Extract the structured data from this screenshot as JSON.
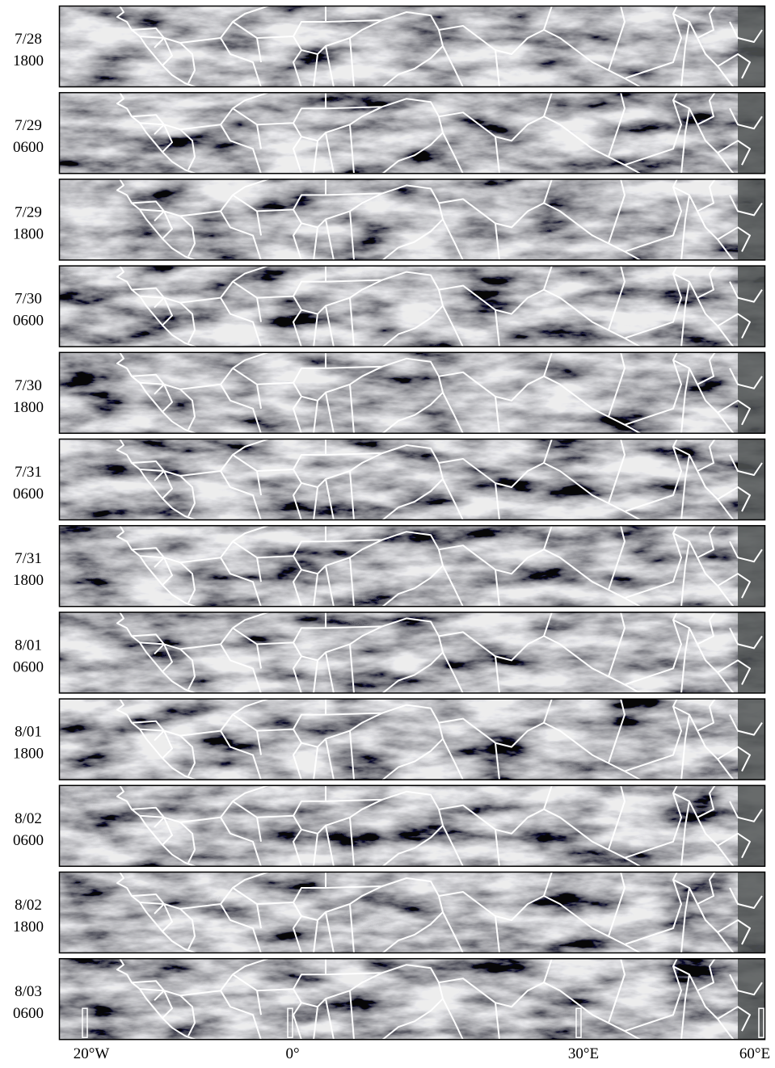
{
  "panels": [
    {
      "date": "7/28",
      "time": "1800"
    },
    {
      "date": "7/29",
      "time": "0600"
    },
    {
      "date": "7/29",
      "time": "1800"
    },
    {
      "date": "7/30",
      "time": "0600"
    },
    {
      "date": "7/30",
      "time": "1800"
    },
    {
      "date": "7/31",
      "time": "0600"
    },
    {
      "date": "7/31",
      "time": "1800"
    },
    {
      "date": "8/01",
      "time": "0600"
    },
    {
      "date": "8/01",
      "time": "1800"
    },
    {
      "date": "8/02",
      "time": "0600"
    },
    {
      "date": "8/02",
      "time": "1800"
    },
    {
      "date": "8/03",
      "time": "0600"
    }
  ],
  "axis_labels": [
    "20°W",
    "0°",
    "30°E",
    "60°E"
  ]
}
